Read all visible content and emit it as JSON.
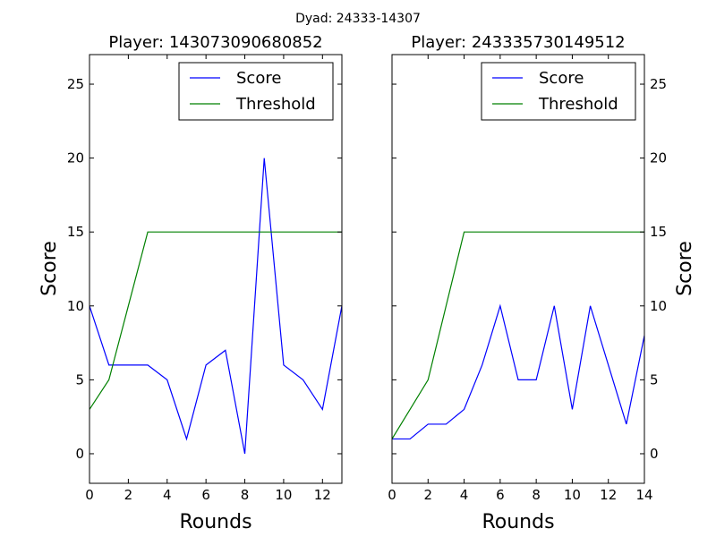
{
  "figure": {
    "suptitle": "Dyad: 24333-14307"
  },
  "colors": {
    "score": "#0000ff",
    "threshold": "#008000",
    "axes": "#000000",
    "background": "#ffffff"
  },
  "chart_data": [
    {
      "type": "line",
      "title": "Player: 143073090680852",
      "xlabel": "Rounds",
      "ylabel": "Score",
      "ylabel_side": "left",
      "xlim": [
        0,
        13
      ],
      "ylim": [
        -2,
        27
      ],
      "xticks": [
        0,
        2,
        4,
        6,
        8,
        10,
        12
      ],
      "yticks": [
        0,
        5,
        10,
        15,
        20,
        25
      ],
      "grid": false,
      "legend_position": "top-right",
      "series": [
        {
          "name": "Score",
          "color": "#0000ff",
          "x": [
            0,
            1,
            2,
            3,
            4,
            5,
            6,
            7,
            8,
            9,
            10,
            11,
            12,
            13
          ],
          "values": [
            10,
            6,
            6,
            6,
            5,
            1,
            6,
            7,
            0,
            20,
            6,
            5,
            3,
            10
          ]
        },
        {
          "name": "Threshold",
          "color": "#008000",
          "x": [
            0,
            1,
            2,
            3,
            4,
            5,
            6,
            7,
            8,
            9,
            10,
            11,
            12,
            13
          ],
          "values": [
            3,
            5,
            10,
            15,
            15,
            15,
            15,
            15,
            15,
            15,
            15,
            15,
            15,
            15
          ]
        }
      ]
    },
    {
      "type": "line",
      "title": "Player: 243335730149512",
      "xlabel": "Rounds",
      "ylabel": "Score",
      "ylabel_side": "right",
      "xlim": [
        0,
        14
      ],
      "ylim": [
        -2,
        27
      ],
      "xticks": [
        0,
        2,
        4,
        6,
        8,
        10,
        12,
        14
      ],
      "yticks": [
        0,
        5,
        10,
        15,
        20,
        25
      ],
      "grid": false,
      "legend_position": "top-right",
      "series": [
        {
          "name": "Score",
          "color": "#0000ff",
          "x": [
            0,
            1,
            2,
            3,
            4,
            5,
            6,
            7,
            8,
            9,
            10,
            11,
            12,
            13,
            14
          ],
          "values": [
            1,
            1,
            2,
            2,
            3,
            6,
            10,
            5,
            5,
            10,
            3,
            10,
            6,
            2,
            8
          ]
        },
        {
          "name": "Threshold",
          "color": "#008000",
          "x": [
            0,
            1,
            2,
            3,
            4,
            5,
            6,
            7,
            8,
            9,
            10,
            11,
            12,
            13,
            14
          ],
          "values": [
            1,
            3,
            5,
            10,
            15,
            15,
            15,
            15,
            15,
            15,
            15,
            15,
            15,
            15,
            15
          ]
        }
      ]
    }
  ]
}
